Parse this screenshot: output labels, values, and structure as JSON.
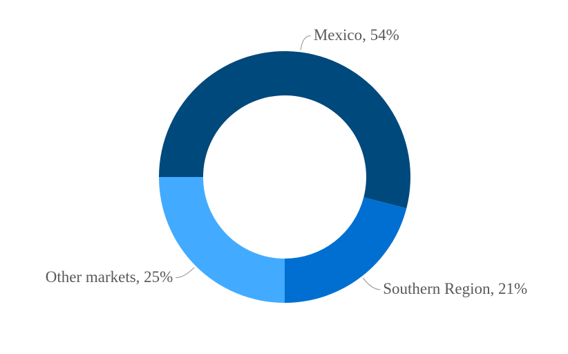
{
  "chart_data": {
    "type": "donut",
    "values": [
      54,
      21,
      25
    ],
    "value_labels": [
      "Mexico, 54%",
      "Southern Region, 21%",
      "Other markets, 25%"
    ],
    "colors": [
      "#00497c",
      "#006fd1",
      "#42abff"
    ]
  }
}
